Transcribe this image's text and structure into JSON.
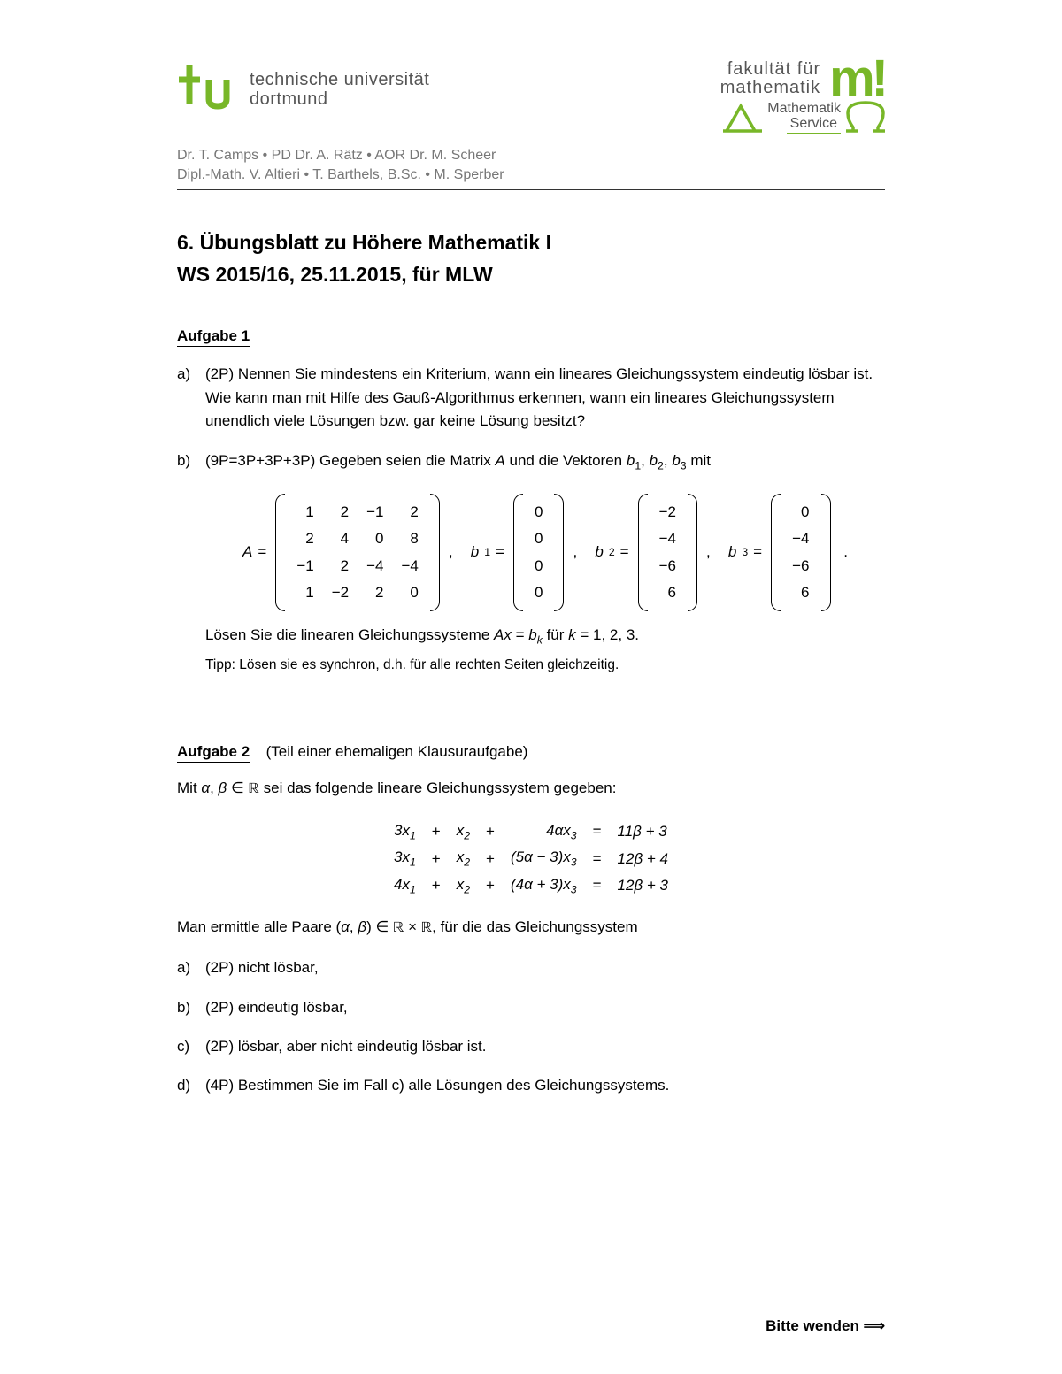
{
  "header": {
    "tu_logo_text": "tu",
    "tu_line1": "technische universität",
    "tu_line2": "dortmund",
    "fak_line1": "fakultät für",
    "fak_line2": "mathematik",
    "m_bang": "m!",
    "service_line1": "Mathematik",
    "service_line2": "Service",
    "lecturers_line1": "Dr. T. Camps • PD Dr. A. Rätz • AOR Dr. M. Scheer",
    "lecturers_line2": "Dipl.-Math. V. Altieri • T. Barthels, B.Sc. • M. Sperber",
    "accent_color": "#78b728"
  },
  "title": {
    "line1": "6. Übungsblatt zu Höhere Mathematik I",
    "line2": "WS 2015/16, 25.11.2015, für MLW"
  },
  "aufgabe1": {
    "heading": "Aufgabe 1",
    "a_marker": "a)",
    "a_text": "(2P) Nennen Sie mindestens ein Kriterium, wann ein lineares Gleichungssystem eindeutig lösbar ist. Wie kann man mit Hilfe des Gauß-Algorithmus erkennen, wann ein lineares Gleichungssystem unendlich viele Lösungen bzw. gar keine Lösung besitzt?",
    "b_marker": "b)",
    "b_intro": "(9P=3P+3P+3P) Gegeben seien die Matrix A und die Vektoren b₁, b₂, b₃ mit",
    "matrix_A_label": "A =",
    "matrix_A": [
      [
        "1",
        "2",
        "−1",
        "2"
      ],
      [
        "2",
        "4",
        "0",
        "8"
      ],
      [
        "−1",
        "2",
        "−4",
        "−4"
      ],
      [
        "1",
        "−2",
        "2",
        "0"
      ]
    ],
    "b1_label": "b₁ =",
    "b1": [
      [
        "0"
      ],
      [
        "0"
      ],
      [
        "0"
      ],
      [
        "0"
      ]
    ],
    "b2_label": "b₂ =",
    "b2": [
      [
        "−2"
      ],
      [
        "−4"
      ],
      [
        "−6"
      ],
      [
        "6"
      ]
    ],
    "b3_label": "b₃ =",
    "b3": [
      [
        "0"
      ],
      [
        "−4"
      ],
      [
        "−6"
      ],
      [
        "6"
      ]
    ],
    "b_solve": "Lösen Sie die linearen Gleichungssysteme Ax = bₖ für k = 1, 2, 3.",
    "b_tip_label": "Tipp:",
    "b_tip": "Lösen sie es synchron, d.h. für alle rechten Seiten gleichzeitig."
  },
  "aufgabe2": {
    "heading": "Aufgabe 2",
    "note": "(Teil einer ehemaligen Klausuraufgabe)",
    "intro": "Mit α, β ∈ ℝ sei das folgende lineare Gleichungssystem gegeben:",
    "system": [
      [
        "3x₁",
        "+",
        "x₂",
        "+",
        "",
        "4αx₃",
        "=",
        "11β + 3"
      ],
      [
        "3x₁",
        "+",
        "x₂",
        "+",
        "(5α − 3)x₃",
        "",
        "=",
        "12β + 4"
      ],
      [
        "4x₁",
        "+",
        "x₂",
        "+",
        "(4α + 3)x₃",
        "",
        "=",
        "12β + 3"
      ]
    ],
    "post": "Man ermittle alle Paare (α, β) ∈ ℝ × ℝ, für die das Gleichungssystem",
    "a_marker": "a)",
    "a_text": "(2P) nicht lösbar,",
    "b_marker": "b)",
    "b_text": "(2P) eindeutig lösbar,",
    "c_marker": "c)",
    "c_text": "(2P) lösbar, aber nicht eindeutig lösbar ist.",
    "d_marker": "d)",
    "d_text": "(4P) Bestimmen Sie im Fall c) alle Lösungen des Gleichungssystems."
  },
  "footer": "Bitte wenden ⟹"
}
